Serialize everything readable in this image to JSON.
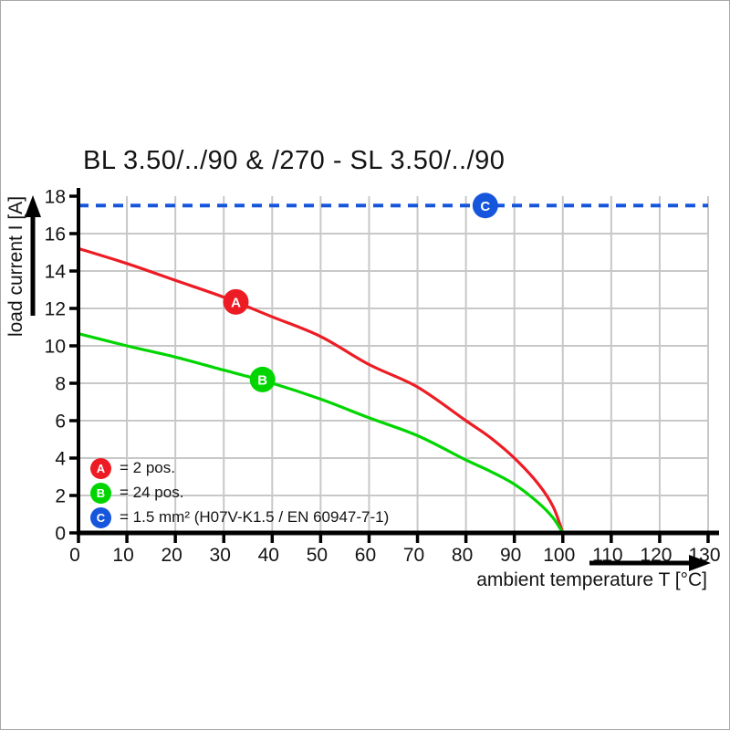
{
  "title": "BL 3.50/../90 & /270 - SL 3.50/../90",
  "legend": {
    "items": [
      {
        "letter": "A",
        "color": "#ed1c24",
        "label": "= 2 pos."
      },
      {
        "letter": "B",
        "color": "#00d500",
        "label": "= 24 pos."
      },
      {
        "letter": "C",
        "color": "#1656dd",
        "label": "= 1.5 mm² (H07V-K1.5 / EN 60947-7-1)"
      }
    ]
  },
  "chart_data": {
    "type": "line",
    "title": "BL 3.50/../90 & /270 - SL 3.50/../90",
    "xlabel": "ambient temperature T [°C]",
    "ylabel": "load current I [A]",
    "xlim": [
      0,
      130
    ],
    "ylim": [
      0,
      18
    ],
    "x_ticks": [
      0,
      10,
      20,
      30,
      40,
      50,
      60,
      70,
      80,
      90,
      100,
      110,
      120,
      130
    ],
    "y_ticks": [
      0,
      2,
      4,
      6,
      8,
      10,
      12,
      14,
      16,
      18
    ],
    "grid": true,
    "grid_color": "#c8c8c8",
    "axis_color": "#000000",
    "legend_position": "lower-left",
    "series": [
      {
        "name": "A",
        "label": "= 2 pos.",
        "color": "#ed1c24",
        "style": "solid",
        "marker": {
          "letter": "A",
          "T": 32.5,
          "I": 12.35
        },
        "points": [
          [
            0,
            15.2
          ],
          [
            10,
            14.4
          ],
          [
            20,
            13.5
          ],
          [
            30,
            12.6
          ],
          [
            40,
            11.55
          ],
          [
            50,
            10.5
          ],
          [
            60,
            9.0
          ],
          [
            70,
            7.8
          ],
          [
            80,
            6.0
          ],
          [
            85,
            5.1
          ],
          [
            90,
            4.0
          ],
          [
            95,
            2.6
          ],
          [
            98,
            1.4
          ],
          [
            100,
            0
          ]
        ]
      },
      {
        "name": "B",
        "label": "= 24 pos.",
        "color": "#00d500",
        "style": "solid",
        "marker": {
          "letter": "B",
          "T": 38,
          "I": 8.2
        },
        "points": [
          [
            0,
            10.65
          ],
          [
            10,
            10.0
          ],
          [
            20,
            9.4
          ],
          [
            30,
            8.7
          ],
          [
            40,
            8.0
          ],
          [
            50,
            7.15
          ],
          [
            60,
            6.15
          ],
          [
            70,
            5.2
          ],
          [
            80,
            3.9
          ],
          [
            85,
            3.3
          ],
          [
            90,
            2.6
          ],
          [
            95,
            1.6
          ],
          [
            98,
            0.8
          ],
          [
            100,
            0
          ]
        ]
      },
      {
        "name": "C",
        "label": "= 1.5 mm² (H07V-K1.5 / EN 60947-7-1)",
        "color": "#1656dd",
        "style": "dashed",
        "marker": {
          "letter": "C",
          "T": 84,
          "I": 17.5
        },
        "points": [
          [
            0,
            17.5
          ],
          [
            130,
            17.5
          ]
        ]
      }
    ]
  }
}
